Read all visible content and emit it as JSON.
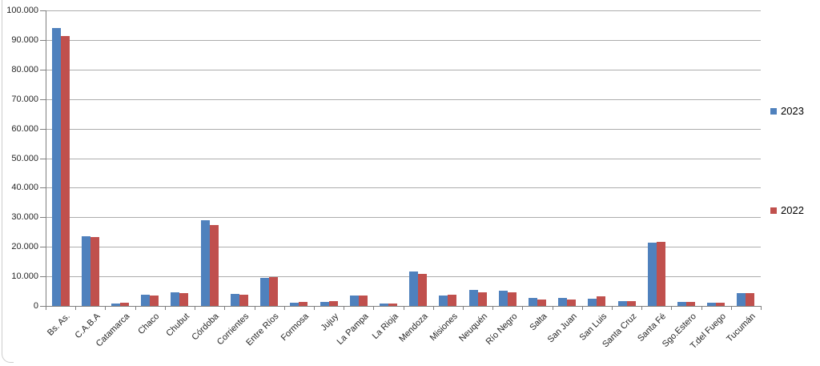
{
  "chart_data": {
    "type": "bar",
    "title": "",
    "xlabel": "",
    "ylabel": "",
    "categories": [
      "Bs. As.",
      "C.A.B.A",
      "Catamarca",
      "Chaco",
      "Chubut",
      "Córdoba",
      "Corrientes",
      "Entre Ríos",
      "Formosa",
      "Jujuy",
      "La Pampa",
      "La Rioja",
      "Mendoza",
      "Misiones",
      "Neuquén",
      "Río Negro",
      "Salta",
      "San Juan",
      "San Luis",
      "Santa Cruz",
      "Santa Fé",
      "Sgo.Estero",
      "T.del Fuego",
      "Tucumán"
    ],
    "series": [
      {
        "name": "2023",
        "color": "#4F81BD",
        "values": [
          94000,
          23600,
          700,
          3700,
          4600,
          28900,
          4000,
          9400,
          1200,
          1500,
          3500,
          900,
          11700,
          3600,
          5300,
          5100,
          2600,
          2800,
          2400,
          1700,
          21300,
          1400,
          1100,
          4300
        ]
      },
      {
        "name": "2022",
        "color": "#C0504D",
        "values": [
          91300,
          23300,
          1000,
          3600,
          4300,
          27500,
          3900,
          9800,
          1300,
          1600,
          3600,
          800,
          10800,
          3700,
          4700,
          4700,
          2300,
          2100,
          3400,
          1700,
          21800,
          1500,
          1200,
          4300
        ]
      }
    ],
    "ylim": [
      0,
      100000
    ],
    "ytick_interval": 10000,
    "ytick_labels": [
      "100.000",
      "90.000",
      "80.000",
      "70.000",
      "60.000",
      "50.000",
      "40.000",
      "30.000",
      "20.000",
      "10.000",
      "0"
    ],
    "grid": true,
    "legend_position": "right"
  }
}
